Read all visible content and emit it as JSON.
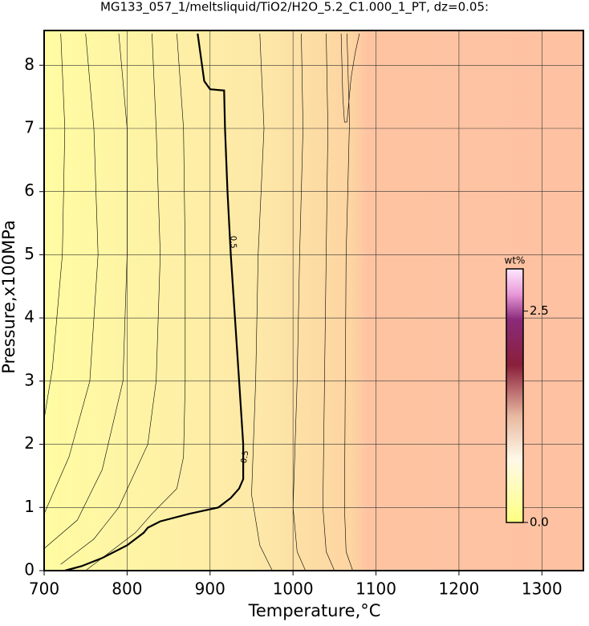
{
  "chart_data": {
    "type": "contour",
    "title": "MG133_057_1/meltsliquid/TiO2/H2O_5.2_C1.000_1_PT, dz=0.05:",
    "x_label": "Temperature,°C",
    "y_label": "Pressure,x100MPa",
    "xlim": [
      700,
      1350
    ],
    "xticks": [
      700,
      800,
      900,
      1000,
      1100,
      1200,
      1300
    ],
    "ylim": [
      0,
      8.55
    ],
    "yticks": [
      0,
      1,
      2,
      3,
      4,
      5,
      6,
      7,
      8
    ],
    "grid": true,
    "colorbar": {
      "label": "wt%",
      "lim": [
        0,
        3
      ],
      "ticks": [
        {
          "value": 0,
          "label": "0.0"
        },
        2.5
      ]
    },
    "contours": [
      {
        "level": 0.5,
        "bold": true,
        "x": [
          885,
          893,
          900,
          917,
          918,
          921,
          925,
          930,
          935,
          940,
          940,
          935,
          925,
          910,
          875,
          840,
          825,
          820,
          800,
          770,
          745,
          725
        ],
        "y": [
          8.5,
          7.75,
          7.62,
          7.6,
          7.0,
          6,
          5,
          4,
          3,
          2,
          1.45,
          1.3,
          1.15,
          1.0,
          0.9,
          0.78,
          0.68,
          0.6,
          0.4,
          0.2,
          0.07,
          0
        ],
        "label_x": [
          928,
          942
        ],
        "label_y": [
          5.2,
          1.8
        ]
      },
      {
        "x": [
          1065,
          1068,
          1066,
          1064,
          1063,
          1062,
          1064,
          1072
        ],
        "y": [
          8.5,
          7.1,
          6,
          5,
          3,
          1,
          0.3,
          0
        ]
      },
      {
        "x": [
          1058,
          1060,
          1062,
          1065,
          1070,
          1075,
          1080
        ],
        "y": [
          8.5,
          7.5,
          7.1,
          7.1,
          7.8,
          8.2,
          8.5
        ]
      },
      {
        "x": [
          1040,
          1042,
          1040,
          1038,
          1036,
          1040,
          1050
        ],
        "y": [
          8.5,
          7,
          5,
          3,
          1,
          0.3,
          0
        ]
      },
      {
        "x": [
          1010,
          1012,
          1008,
          1005,
          1000,
          1005,
          1015
        ],
        "y": [
          8.5,
          7,
          5,
          3,
          1,
          0.3,
          0
        ]
      },
      {
        "x": [
          960,
          965,
          958,
          955,
          950,
          960,
          975
        ],
        "y": [
          8.5,
          7,
          5,
          3,
          1.2,
          0.4,
          0
        ]
      },
      {
        "x": [
          860,
          868,
          870,
          870,
          868,
          860,
          830,
          810,
          780,
          750
        ],
        "y": [
          8.5,
          7,
          5,
          3,
          1.8,
          1.3,
          0.9,
          0.6,
          0.3,
          0
        ]
      },
      {
        "x": [
          830,
          835,
          840,
          835,
          825,
          790,
          760,
          720
        ],
        "y": [
          8.5,
          7,
          5,
          3,
          2,
          1,
          0.5,
          0.1
        ]
      },
      {
        "x": [
          790,
          800,
          800,
          795,
          770,
          740,
          700
        ],
        "y": [
          8.5,
          7,
          5,
          3,
          1.6,
          0.8,
          0.35
        ]
      },
      {
        "x": [
          750,
          760,
          765,
          755,
          730,
          700
        ],
        "y": [
          8.5,
          7,
          5,
          3,
          1.8,
          0.9
        ]
      },
      {
        "x": [
          720,
          725,
          722,
          710,
          700
        ],
        "y": [
          8.5,
          7,
          5,
          3.2,
          2.4
        ]
      }
    ]
  }
}
